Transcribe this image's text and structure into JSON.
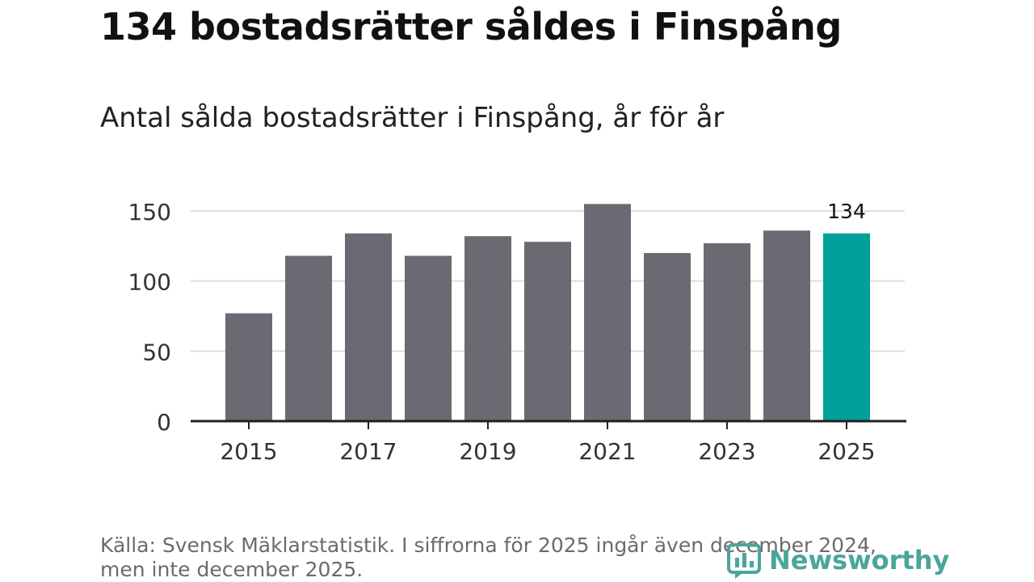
{
  "title": "134 bostadsrätter såldes i Finspång",
  "subtitle": "Antal sålda bostadsrätter i Finspång, år för år",
  "source_line1": "Källa: Svensk Mäklarstatistik. I siffrorna för 2025 ingår även december 2024,",
  "source_line2": "men inte december 2025.",
  "brand": "Newsworthy",
  "colors": {
    "bar": "#6b6a72",
    "highlight": "#00a19a",
    "grid": "#dddddd",
    "axis": "#222222",
    "brand": "#4aa59a"
  },
  "chart_data": {
    "type": "bar",
    "categories": [
      "2015",
      "2016",
      "2017",
      "2018",
      "2019",
      "2020",
      "2021",
      "2022",
      "2023",
      "2024",
      "2025"
    ],
    "values": [
      77,
      118,
      134,
      118,
      132,
      128,
      155,
      120,
      127,
      136,
      134
    ],
    "x_tick_labels": [
      "2015",
      "2017",
      "2019",
      "2021",
      "2023",
      "2025"
    ],
    "y_ticks": [
      0,
      50,
      100,
      150
    ],
    "ylim": [
      0,
      150
    ],
    "highlight_category": "2025",
    "data_labels": [
      {
        "category": "2025",
        "text": "134"
      }
    ],
    "grid": true
  }
}
